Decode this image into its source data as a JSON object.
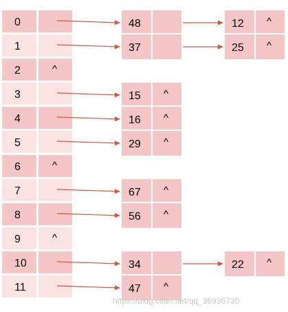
{
  "colors": {
    "row_dark": "#f4c6c6",
    "row_light": "#fae3e3",
    "node": "#f4c6c6",
    "border": "#ffffff",
    "arrow": "#e0533a",
    "text": "#000000"
  },
  "null_symbol": "^",
  "hash_table": {
    "rows": [
      {
        "index": "0",
        "chain": [
          "48",
          "12"
        ]
      },
      {
        "index": "1",
        "chain": [
          "37",
          "25"
        ]
      },
      {
        "index": "2",
        "chain": []
      },
      {
        "index": "3",
        "chain": [
          "15"
        ]
      },
      {
        "index": "4",
        "chain": [
          "16"
        ]
      },
      {
        "index": "5",
        "chain": [
          "29"
        ]
      },
      {
        "index": "6",
        "chain": []
      },
      {
        "index": "7",
        "chain": [
          "67"
        ]
      },
      {
        "index": "8",
        "chain": [
          "56"
        ]
      },
      {
        "index": "9",
        "chain": []
      },
      {
        "index": "10",
        "chain": [
          "34",
          "22"
        ]
      },
      {
        "index": "11",
        "chain": [
          "47"
        ]
      }
    ]
  },
  "watermark": "https://blog.csdn.net/qq_36936730"
}
